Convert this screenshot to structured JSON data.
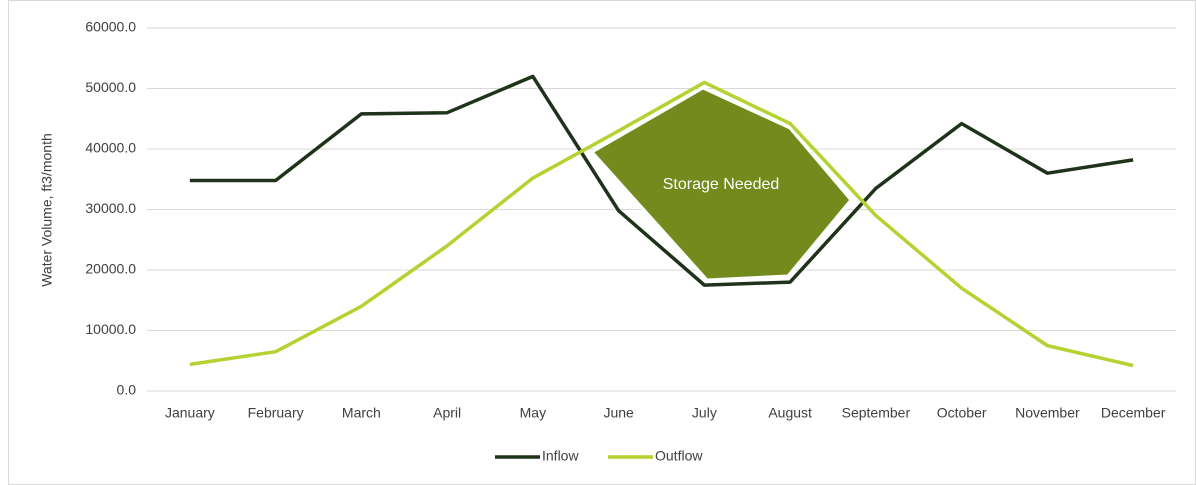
{
  "chart_data": {
    "type": "line",
    "y_axis_label": "Water Volume, ft3/month",
    "annotation": "Storage Needed",
    "categories": [
      "January",
      "February",
      "March",
      "April",
      "May",
      "June",
      "July",
      "August",
      "September",
      "October",
      "November",
      "December"
    ],
    "series": [
      {
        "name": "Inflow",
        "color": "#1e3319",
        "values": [
          34800,
          34800,
          45800,
          46000,
          52000,
          29800,
          17500,
          18000,
          33500,
          44200,
          36000,
          38200
        ]
      },
      {
        "name": "Outflow",
        "color": "#b4d232",
        "values": [
          4400,
          6500,
          14000,
          24000,
          35200,
          43000,
          51000,
          44200,
          29000,
          17000,
          7500,
          4200
        ]
      }
    ],
    "ylim": [
      0,
      60000
    ],
    "yticks": [
      {
        "value": 0,
        "label": "0.0"
      },
      {
        "value": 10000,
        "label": "10000.0"
      },
      {
        "value": 20000,
        "label": "20000.0"
      },
      {
        "value": 30000,
        "label": "30000.0"
      },
      {
        "value": 40000,
        "label": "40000.0"
      },
      {
        "value": 50000,
        "label": "50000.0"
      },
      {
        "value": 60000,
        "label": "60000.0"
      }
    ],
    "grid": true,
    "legend": "bottom"
  }
}
